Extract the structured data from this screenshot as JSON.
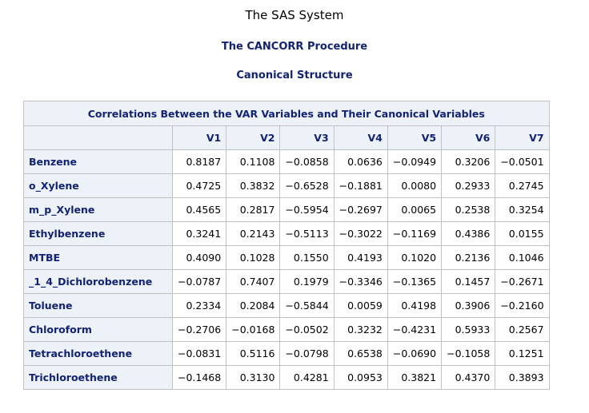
{
  "titles": {
    "system": "The SAS System",
    "procedure": "The CANCORR Procedure",
    "section": "Canonical Structure"
  },
  "table": {
    "caption": "Correlations Between the VAR Variables and Their Canonical Variables",
    "columns": [
      "V1",
      "V2",
      "V3",
      "V4",
      "V5",
      "V6",
      "V7"
    ],
    "rows": [
      {
        "label": "Benzene",
        "values": [
          "0.8187",
          "0.1108",
          "−0.0858",
          "0.0636",
          "−0.0949",
          "0.3206",
          "−0.0501"
        ]
      },
      {
        "label": "o_Xylene",
        "values": [
          "0.4725",
          "0.3832",
          "−0.6528",
          "−0.1881",
          "0.0080",
          "0.2933",
          "0.2745"
        ]
      },
      {
        "label": "m_p_Xylene",
        "values": [
          "0.4565",
          "0.2817",
          "−0.5954",
          "−0.2697",
          "0.0065",
          "0.2538",
          "0.3254"
        ]
      },
      {
        "label": "Ethylbenzene",
        "values": [
          "0.3241",
          "0.2143",
          "−0.5113",
          "−0.3022",
          "−0.1169",
          "0.4386",
          "0.0155"
        ]
      },
      {
        "label": "MTBE",
        "values": [
          "0.4090",
          "0.1028",
          "0.1550",
          "0.4193",
          "0.1020",
          "0.2136",
          "0.1046"
        ]
      },
      {
        "label": "_1_4_Dichlorobenzene",
        "values": [
          "−0.0787",
          "0.7407",
          "0.1979",
          "−0.3346",
          "−0.1365",
          "0.1457",
          "−0.2671"
        ]
      },
      {
        "label": "Toluene",
        "values": [
          "0.2334",
          "0.2084",
          "−0.5844",
          "0.0059",
          "0.4198",
          "0.3906",
          "−0.2160"
        ]
      },
      {
        "label": "Chloroform",
        "values": [
          "−0.2706",
          "−0.0168",
          "−0.0502",
          "0.3232",
          "−0.4231",
          "0.5933",
          "0.2567"
        ]
      },
      {
        "label": "Tetrachloroethene",
        "values": [
          "−0.0831",
          "0.5116",
          "−0.0798",
          "0.6538",
          "−0.0690",
          "−0.1058",
          "0.1251"
        ]
      },
      {
        "label": "Trichloroethene",
        "values": [
          "−0.1468",
          "0.3130",
          "0.4281",
          "0.0953",
          "0.3821",
          "0.4370",
          "0.3893"
        ]
      }
    ]
  },
  "colors": {
    "header_bg": "#edf2f9",
    "header_text": "#112277",
    "border": "#c1c1c1"
  }
}
